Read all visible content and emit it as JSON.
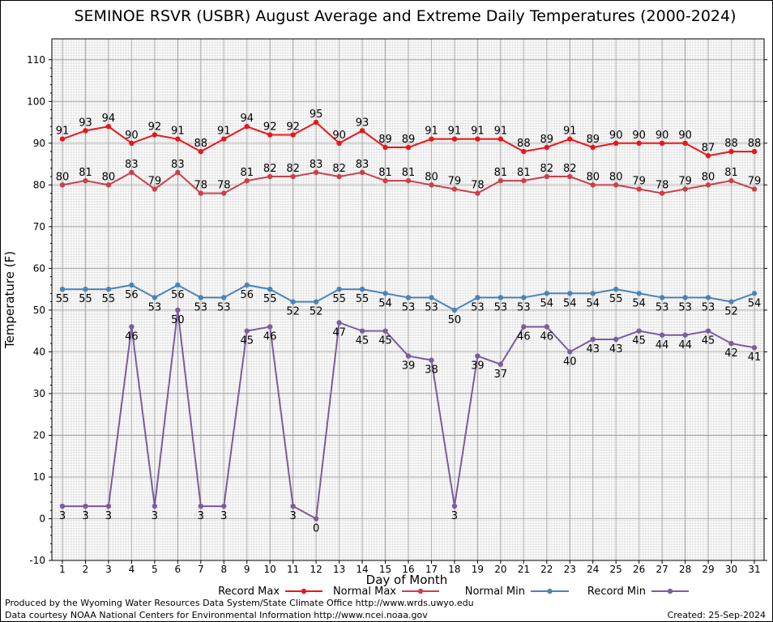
{
  "chart_data": {
    "type": "line",
    "title": "SEMINOE RSVR (USBR) August Average and Extreme Daily Temperatures (2000-2024)",
    "xlabel": "Day of Month",
    "ylabel": "Temperature (F)",
    "ylim": [
      -10,
      115
    ],
    "y_ticks": [
      -10,
      0,
      10,
      20,
      30,
      40,
      50,
      60,
      70,
      80,
      90,
      100,
      110
    ],
    "x": [
      1,
      2,
      3,
      4,
      5,
      6,
      7,
      8,
      9,
      10,
      11,
      12,
      13,
      14,
      15,
      16,
      17,
      18,
      19,
      20,
      21,
      22,
      23,
      24,
      25,
      26,
      27,
      28,
      29,
      30,
      31
    ],
    "grid": true,
    "legend_position": "bottom",
    "series": [
      {
        "name": "Record Max",
        "color": "#e8161c",
        "label_pos": "above",
        "values": [
          91,
          93,
          94,
          90,
          92,
          91,
          88,
          91,
          94,
          92,
          92,
          95,
          90,
          93,
          89,
          89,
          91,
          91,
          91,
          91,
          88,
          89,
          91,
          89,
          90,
          90,
          90,
          90,
          87,
          88,
          88
        ]
      },
      {
        "name": "Normal Max",
        "color": "#c9404a",
        "label_pos": "above",
        "values": [
          80,
          81,
          80,
          83,
          79,
          83,
          78,
          78,
          81,
          82,
          82,
          83,
          82,
          83,
          81,
          81,
          80,
          79,
          78,
          81,
          81,
          82,
          82,
          80,
          80,
          79,
          78,
          79,
          80,
          81,
          79
        ]
      },
      {
        "name": "Normal Min",
        "color": "#4a84b6",
        "label_pos": "below",
        "values": [
          55,
          55,
          55,
          56,
          53,
          56,
          53,
          53,
          56,
          55,
          52,
          52,
          55,
          55,
          54,
          53,
          53,
          50,
          53,
          53,
          53,
          54,
          54,
          54,
          55,
          54,
          53,
          53,
          53,
          52,
          54
        ]
      },
      {
        "name": "Record Min",
        "color": "#7b5d9e",
        "label_pos": "below",
        "values": [
          3,
          3,
          3,
          46,
          3,
          50,
          3,
          3,
          45,
          46,
          3,
          0,
          47,
          45,
          45,
          39,
          38,
          3,
          39,
          37,
          46,
          46,
          40,
          43,
          43,
          45,
          44,
          44,
          45,
          42,
          41
        ]
      }
    ]
  },
  "footer": {
    "produced_by": "Produced by the Wyoming Water Resources Data System/State Climate Office http://www.wrds.uwyo.edu",
    "courtesy": "Data courtesy NOAA National Centers for Environmental Information http://www.ncei.noaa.gov",
    "created": "Created:  25-Sep-2024"
  }
}
